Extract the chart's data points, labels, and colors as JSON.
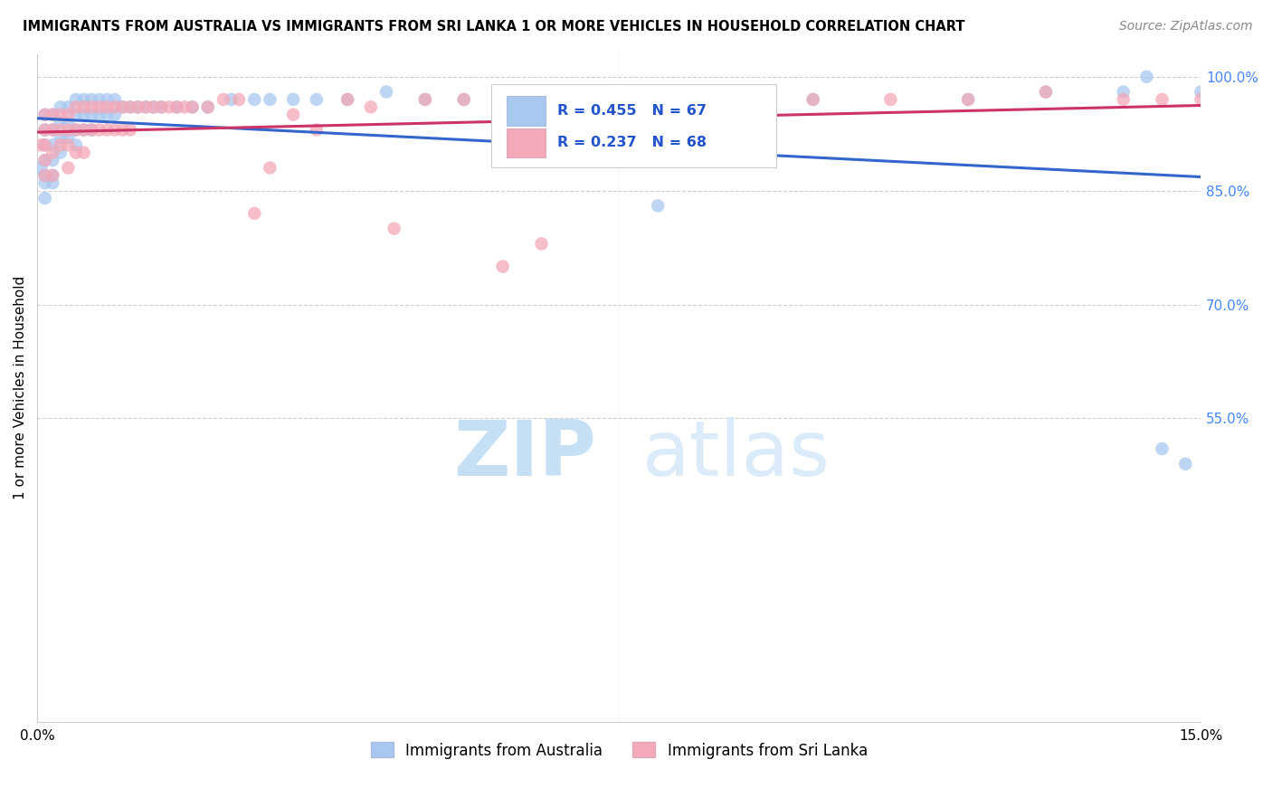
{
  "title": "IMMIGRANTS FROM AUSTRALIA VS IMMIGRANTS FROM SRI LANKA 1 OR MORE VEHICLES IN HOUSEHOLD CORRELATION CHART",
  "source": "Source: ZipAtlas.com",
  "ylabel": "1 or more Vehicles in Household",
  "xlim": [
    0.0,
    0.15
  ],
  "ylim": [
    0.15,
    1.03
  ],
  "r_australia": 0.455,
  "n_australia": 67,
  "r_srilanka": 0.237,
  "n_srilanka": 68,
  "color_australia": "#a8c8f0",
  "color_srilanka": "#f4a8b8",
  "line_color_australia": "#3366cc",
  "line_color_srilanka": "#cc3366",
  "legend_label_australia": "Immigrants from Australia",
  "legend_label_srilanka": "Immigrants from Sri Lanka",
  "watermark_zip": "ZIP",
  "watermark_atlas": "atlas",
  "ytick_vals": [
    0.55,
    0.7,
    0.85,
    1.0
  ],
  "ytick_labels": [
    "55.0%",
    "70.0%",
    "85.0%",
    "100.0%"
  ],
  "tick_color": "#4488ff",
  "aus_x": [
    0.0005,
    0.001,
    0.001,
    0.001,
    0.001,
    0.001,
    0.001,
    0.001,
    0.002,
    0.002,
    0.002,
    0.002,
    0.002,
    0.002,
    0.003,
    0.003,
    0.003,
    0.003,
    0.004,
    0.004,
    0.004,
    0.005,
    0.005,
    0.005,
    0.005,
    0.006,
    0.006,
    0.006,
    0.007,
    0.007,
    0.007,
    0.008,
    0.008,
    0.009,
    0.009,
    0.01,
    0.01,
    0.011,
    0.012,
    0.013,
    0.014,
    0.015,
    0.016,
    0.018,
    0.02,
    0.022,
    0.025,
    0.028,
    0.03,
    0.033,
    0.036,
    0.04,
    0.045,
    0.05,
    0.055,
    0.06,
    0.07,
    0.08,
    0.09,
    0.1,
    0.12,
    0.13,
    0.14,
    0.143,
    0.145,
    0.148,
    0.15
  ],
  "aus_y": [
    0.88,
    0.95,
    0.93,
    0.91,
    0.89,
    0.87,
    0.86,
    0.84,
    0.95,
    0.93,
    0.91,
    0.89,
    0.87,
    0.86,
    0.96,
    0.94,
    0.92,
    0.9,
    0.96,
    0.94,
    0.92,
    0.97,
    0.95,
    0.93,
    0.91,
    0.97,
    0.95,
    0.93,
    0.97,
    0.95,
    0.93,
    0.97,
    0.95,
    0.97,
    0.95,
    0.97,
    0.95,
    0.96,
    0.96,
    0.96,
    0.96,
    0.96,
    0.96,
    0.96,
    0.96,
    0.96,
    0.97,
    0.97,
    0.97,
    0.97,
    0.97,
    0.97,
    0.98,
    0.97,
    0.97,
    0.96,
    0.97,
    0.83,
    0.97,
    0.97,
    0.97,
    0.98,
    0.98,
    1.0,
    0.51,
    0.49,
    0.98
  ],
  "sri_x": [
    0.0005,
    0.001,
    0.001,
    0.001,
    0.001,
    0.001,
    0.002,
    0.002,
    0.002,
    0.002,
    0.003,
    0.003,
    0.003,
    0.004,
    0.004,
    0.004,
    0.004,
    0.005,
    0.005,
    0.005,
    0.006,
    0.006,
    0.006,
    0.007,
    0.007,
    0.008,
    0.008,
    0.009,
    0.009,
    0.01,
    0.01,
    0.011,
    0.011,
    0.012,
    0.012,
    0.013,
    0.014,
    0.015,
    0.016,
    0.017,
    0.018,
    0.019,
    0.02,
    0.022,
    0.024,
    0.026,
    0.028,
    0.03,
    0.033,
    0.036,
    0.04,
    0.043,
    0.046,
    0.05,
    0.055,
    0.06,
    0.065,
    0.07,
    0.075,
    0.08,
    0.09,
    0.1,
    0.11,
    0.12,
    0.13,
    0.14,
    0.145,
    0.15
  ],
  "sri_y": [
    0.91,
    0.95,
    0.93,
    0.91,
    0.89,
    0.87,
    0.95,
    0.93,
    0.9,
    0.87,
    0.95,
    0.93,
    0.91,
    0.95,
    0.93,
    0.91,
    0.88,
    0.96,
    0.93,
    0.9,
    0.96,
    0.93,
    0.9,
    0.96,
    0.93,
    0.96,
    0.93,
    0.96,
    0.93,
    0.96,
    0.93,
    0.96,
    0.93,
    0.96,
    0.93,
    0.96,
    0.96,
    0.96,
    0.96,
    0.96,
    0.96,
    0.96,
    0.96,
    0.96,
    0.97,
    0.97,
    0.82,
    0.88,
    0.95,
    0.93,
    0.97,
    0.96,
    0.8,
    0.97,
    0.97,
    0.75,
    0.78,
    0.96,
    0.97,
    0.97,
    0.97,
    0.97,
    0.97,
    0.97,
    0.98,
    0.97,
    0.97,
    0.97
  ]
}
